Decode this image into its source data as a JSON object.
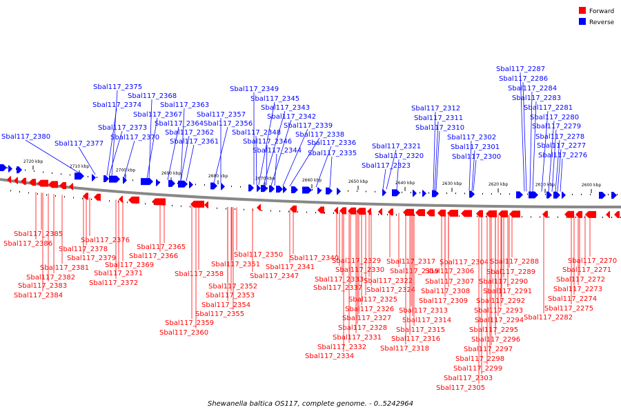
{
  "legend": {
    "forward_label": "Forward",
    "reverse_label": "Reverse",
    "forward_color": "#ff0000",
    "reverse_color": "#0000ff"
  },
  "caption": "Shewanella baltica OS117, complete genome. - 0..5242964",
  "ruler_labels": [
    "2720 kbp",
    "2710 kbp",
    "2700 kbp",
    "2690 kbp",
    "2680 kbp",
    "2670 kbp",
    "2660 kbp",
    "2650 kbp",
    "2640 kbp",
    "2630 kbp",
    "2620 kbp",
    "2610 kbp",
    "2600 kbp"
  ],
  "reverse_genes": [
    "Sbal117_2287",
    "Sbal117_2286",
    "Sbal117_2284",
    "Sbal117_2283",
    "Sbal117_2281",
    "Sbal117_2280",
    "Sbal117_2279",
    "Sbal117_2278",
    "Sbal117_2277",
    "Sbal117_2276",
    "Sbal117_2312",
    "Sbal117_2311",
    "Sbal117_2310",
    "Sbal117_2302",
    "Sbal117_2301",
    "Sbal117_2300",
    "Sbal117_2321",
    "Sbal117_2320",
    "Sbal117_2323",
    "Sbal117_2349",
    "Sbal117_2345",
    "Sbal117_2343",
    "Sbal117_2342",
    "Sbal117_2339",
    "Sbal117_2348",
    "Sbal117_2338",
    "Sbal117_2346",
    "Sbal117_2336",
    "Sbal117_2344",
    "Sbal117_2335",
    "Sbal117_2375",
    "Sbal117_2368",
    "Sbal117_2374",
    "Sbal117_2363",
    "Sbal117_2367",
    "Sbal117_2357",
    "Sbal117_2364",
    "Sbal117_2356",
    "Sbal117_2373",
    "Sbal117_2362",
    "Sbal117_2370",
    "Sbal117_2361",
    "Sbal117_2380",
    "Sbal117_2377"
  ],
  "forward_genes": [
    "Sbal117_2385",
    "Sbal117_2386",
    "Sbal117_2376",
    "Sbal117_2378",
    "Sbal117_2379",
    "Sbal117_2381",
    "Sbal117_2382",
    "Sbal117_2383",
    "Sbal117_2384",
    "Sbal117_2369",
    "Sbal117_2371",
    "Sbal117_2372",
    "Sbal117_2365",
    "Sbal117_2366",
    "Sbal117_2358",
    "Sbal117_2359",
    "Sbal117_2360",
    "Sbal117_2350",
    "Sbal117_2351",
    "Sbal117_2347",
    "Sbal117_2352",
    "Sbal117_2353",
    "Sbal117_2354",
    "Sbal117_2355",
    "Sbal117_2340",
    "Sbal117_2341",
    "Sbal117_2329",
    "Sbal117_2330",
    "Sbal117_2333",
    "Sbal117_2337",
    "Sbal117_2326",
    "Sbal117_2327",
    "Sbal117_2328",
    "Sbal117_2331",
    "Sbal117_2332",
    "Sbal117_2334",
    "Sbal117_2322",
    "Sbal117_2324",
    "Sbal117_2325",
    "Sbal117_2317",
    "Sbal117_2319",
    "Sbal117_2313",
    "Sbal117_2314",
    "Sbal117_2315",
    "Sbal117_2316",
    "Sbal117_2318",
    "Sbal117_2304",
    "Sbal117_2306",
    "Sbal117_2307",
    "Sbal117_2308",
    "Sbal117_2309",
    "Sbal117_2288",
    "Sbal117_2289",
    "Sbal117_2290",
    "Sbal117_2291",
    "Sbal117_2292",
    "Sbal117_2293",
    "Sbal117_2294",
    "Sbal117_2295",
    "Sbal117_2296",
    "Sbal117_2297",
    "Sbal117_2298",
    "Sbal117_2299",
    "Sbal117_2303",
    "Sbal117_2305",
    "Sbal117_2270",
    "Sbal117_2271",
    "Sbal117_2272",
    "Sbal117_2273",
    "Sbal117_2274",
    "Sbal117_2275",
    "Sbal117_2282"
  ]
}
